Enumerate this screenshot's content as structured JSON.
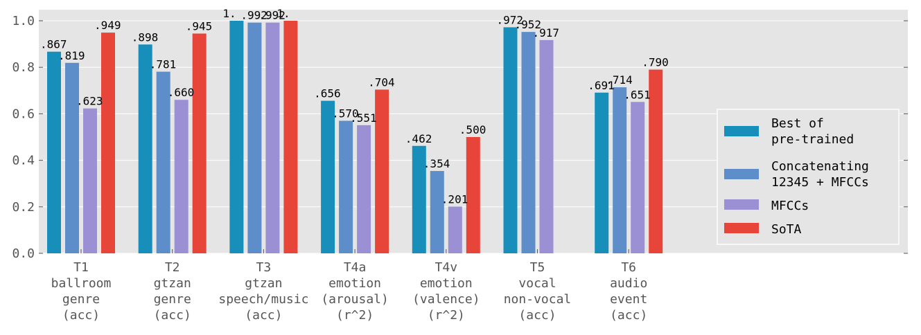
{
  "chart_data": {
    "type": "bar",
    "categories": [
      [
        "T1",
        "ballroom",
        "genre",
        "(acc)"
      ],
      [
        "T2",
        "gtzan",
        "genre",
        "(acc)"
      ],
      [
        "T3",
        "gtzan",
        "speech/music",
        "(acc)"
      ],
      [
        "T4a",
        "emotion",
        "(arousal)",
        "(r^2)"
      ],
      [
        "T4v",
        "emotion",
        "(valence)",
        "(r^2)"
      ],
      [
        "T5",
        "vocal",
        "non-vocal",
        "(acc)"
      ],
      [
        "T6",
        "audio",
        "event",
        "(acc)"
      ]
    ],
    "series": [
      {
        "name": "Best of pre-trained",
        "legend_lines": [
          "Best of",
          "pre-trained"
        ],
        "color": "#188fbb",
        "values": [
          0.867,
          0.898,
          1.0,
          0.656,
          0.462,
          0.972,
          0.691
        ],
        "labels": [
          ".867",
          ".898",
          "1.",
          ".656",
          ".462",
          ".972",
          ".691"
        ]
      },
      {
        "name": "Concatenating 12345 + MFCCs",
        "legend_lines": [
          "Concatenating",
          "12345 + MFCCs"
        ],
        "color": "#5d8ec9",
        "values": [
          0.819,
          0.781,
          0.992,
          0.57,
          0.354,
          0.952,
          0.714
        ],
        "labels": [
          ".819",
          ".781",
          ".992",
          ".570",
          ".354",
          ".952",
          ".714"
        ]
      },
      {
        "name": "MFCCs",
        "legend_lines": [
          "MFCCs"
        ],
        "color": "#9a90d3",
        "values": [
          0.623,
          0.66,
          0.992,
          0.551,
          0.201,
          0.917,
          0.651
        ],
        "labels": [
          ".623",
          ".660",
          ".992",
          ".551",
          ".201",
          ".917",
          ".651"
        ]
      },
      {
        "name": "SoTA",
        "legend_lines": [
          "SoTA"
        ],
        "color": "#e8453a",
        "values": [
          0.949,
          0.945,
          1.0,
          0.704,
          0.5,
          null,
          0.79
        ],
        "labels": [
          ".949",
          ".945",
          "1.",
          ".704",
          ".500",
          null,
          ".790"
        ]
      }
    ],
    "yticks": [
      "0.0",
      "0.2",
      "0.4",
      "0.6",
      "0.8",
      "1.0"
    ],
    "ylim": [
      0,
      1.0
    ],
    "grid": true,
    "legend_position": "right"
  }
}
